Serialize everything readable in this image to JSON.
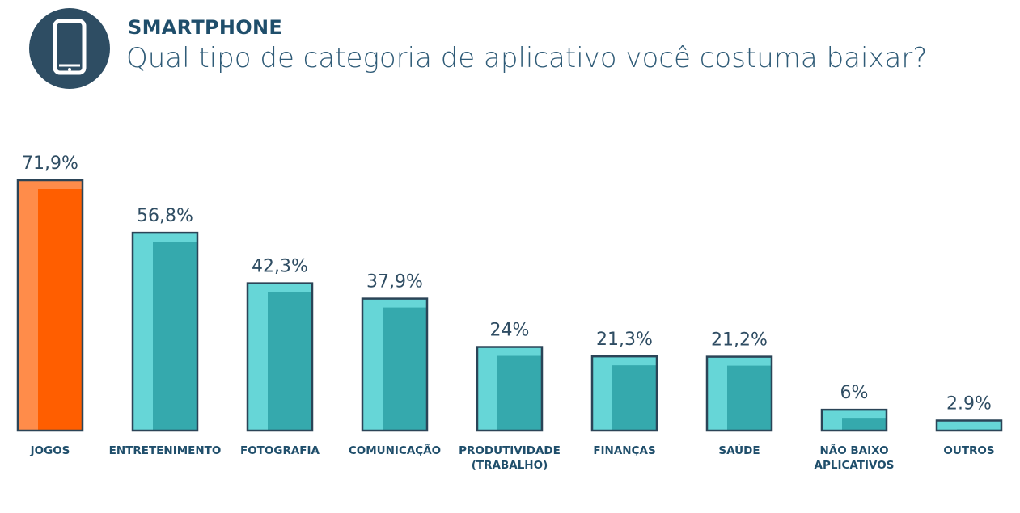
{
  "header": {
    "icon": "smartphone-icon",
    "subtitle": "SMARTPHONE",
    "title": "Qual tipo de categoria de aplicativo você costuma baixar?"
  },
  "colors": {
    "header_circle": "#2e4d63",
    "highlight_main": "#ff5e00",
    "highlight_light": "#ff8c4a",
    "bar_main": "#35a9ad",
    "bar_light": "#66d6d7",
    "outline": "#2b4457"
  },
  "chart_data": {
    "type": "bar",
    "title": "Qual tipo de categoria de aplicativo você costuma baixar?",
    "categories": [
      [
        "JOGOS"
      ],
      [
        "ENTRETENIMENTO"
      ],
      [
        "FOTOGRAFIA"
      ],
      [
        "COMUNICAÇÃO"
      ],
      [
        "PRODUTIVIDADE",
        "(TRABALHO)"
      ],
      [
        "FINANÇAS"
      ],
      [
        "SAÚDE"
      ],
      [
        "NÃO BAIXO",
        "APLICATIVOS"
      ],
      [
        "OUTROS"
      ]
    ],
    "values": [
      71.9,
      56.8,
      42.3,
      37.9,
      24,
      21.3,
      21.2,
      6,
      2.9
    ],
    "value_labels": [
      "71,9%",
      "56,8%",
      "42,3%",
      "37,9%",
      "24%",
      "21,3%",
      "21,2%",
      "6%",
      "2.9%"
    ],
    "highlight_index": 0,
    "ylim": [
      0,
      71.9
    ],
    "grid": false
  }
}
